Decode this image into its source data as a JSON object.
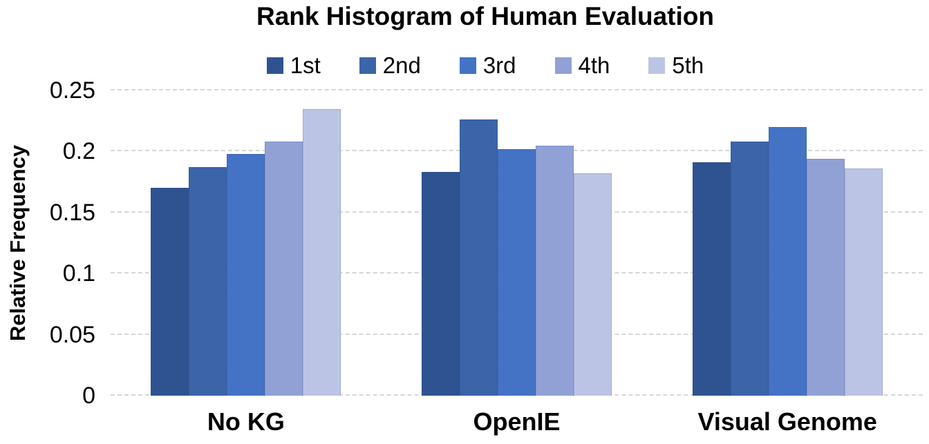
{
  "chart_data": {
    "type": "bar",
    "title": "Rank Histogram of Human Evaluation",
    "ylabel": "Relative Frequency",
    "xlabel": "",
    "categories": [
      "No KG",
      "OpenIE",
      "Visual Genome"
    ],
    "series": [
      {
        "name": "1st",
        "color": "#2F5391",
        "values": [
          0.17,
          0.183,
          0.191
        ]
      },
      {
        "name": "2nd",
        "color": "#3B64A9",
        "values": [
          0.187,
          0.226,
          0.208
        ]
      },
      {
        "name": "3rd",
        "color": "#4472C4",
        "values": [
          0.198,
          0.202,
          0.22
        ]
      },
      {
        "name": "4th",
        "color": "#91A1D5",
        "values": [
          0.208,
          0.205,
          0.194
        ]
      },
      {
        "name": "5th",
        "color": "#BBC4E5",
        "values": [
          0.235,
          0.182,
          0.186
        ]
      }
    ],
    "ylim": [
      0,
      0.25
    ],
    "yticks": [
      0,
      0.05,
      0.1,
      0.15,
      0.2,
      0.25
    ],
    "ytick_labels": [
      "0",
      "0.05",
      "0.1",
      "0.15",
      "0.2",
      "0.25"
    ],
    "grid": "horizontal-dashed",
    "legend_position": "top-center"
  },
  "colors": {
    "background": "#FFFFFF",
    "gridline": "#D6D6D6",
    "text": "#000000"
  }
}
